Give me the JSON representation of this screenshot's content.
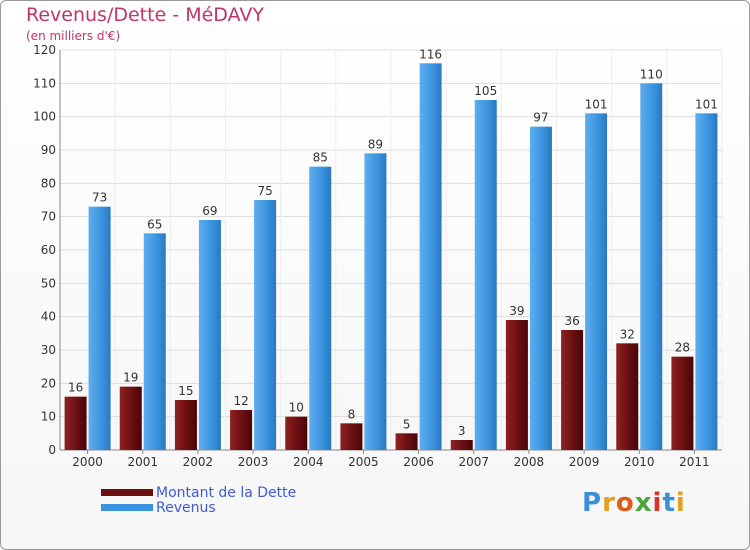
{
  "header": {
    "title": "Revenus/Dette - MéDAVY",
    "subtitle": "(en milliers d'€)"
  },
  "colors": {
    "dette": "#7a1416",
    "revenus": "#3a93de",
    "title": "#c0366a",
    "legend_text": "#3f5bd6"
  },
  "chart_data": {
    "type": "bar",
    "title": "Revenus/Dette - MéDAVY",
    "subtitle": "(en milliers d'€)",
    "categories": [
      "2000",
      "2001",
      "2002",
      "2003",
      "2004",
      "2005",
      "2006",
      "2007",
      "2008",
      "2009",
      "2010",
      "2011"
    ],
    "series": [
      {
        "name": "Montant de la Dette",
        "values": [
          16,
          19,
          15,
          12,
          10,
          8,
          5,
          3,
          39,
          36,
          32,
          28
        ]
      },
      {
        "name": "Revenus",
        "values": [
          73,
          65,
          69,
          75,
          85,
          89,
          116,
          105,
          97,
          101,
          110,
          101
        ]
      }
    ],
    "yticks": [
      0,
      10,
      20,
      30,
      40,
      50,
      60,
      70,
      80,
      90,
      100,
      110,
      120
    ],
    "ylim": [
      0,
      120
    ],
    "grid": true,
    "legend_position": "bottom-left"
  },
  "legend": {
    "items": [
      {
        "label": "Montant de la Dette"
      },
      {
        "label": "Revenus"
      }
    ]
  },
  "logo": {
    "text": "Proxiti"
  }
}
